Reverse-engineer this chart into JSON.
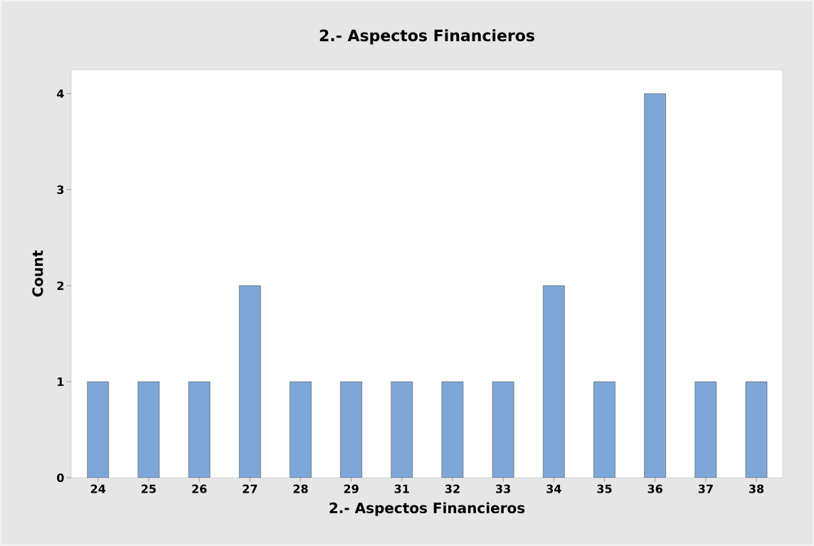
{
  "chart_data": {
    "type": "bar",
    "title": "2.- Aspectos Financieros",
    "xlabel": "2.- Aspectos Financieros",
    "ylabel": "Count",
    "categories": [
      "24",
      "25",
      "26",
      "27",
      "28",
      "29",
      "31",
      "32",
      "33",
      "34",
      "35",
      "36",
      "37",
      "38"
    ],
    "values": [
      1,
      1,
      1,
      2,
      1,
      1,
      1,
      1,
      1,
      2,
      1,
      4,
      1,
      1
    ],
    "color": "#7da7d9",
    "ylim": [
      0,
      4.25
    ],
    "yticks": [
      0,
      1,
      2,
      3,
      4
    ]
  }
}
